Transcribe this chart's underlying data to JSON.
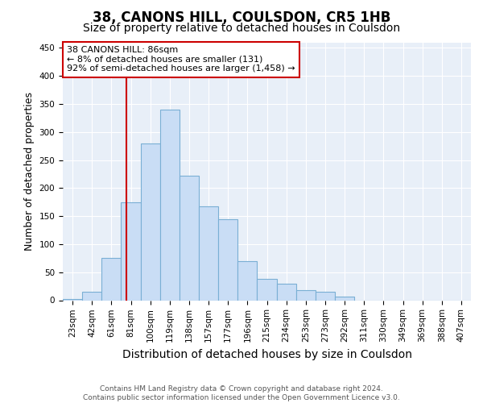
{
  "title": "38, CANONS HILL, COULSDON, CR5 1HB",
  "subtitle": "Size of property relative to detached houses in Coulsdon",
  "xlabel": "Distribution of detached houses by size in Coulsdon",
  "ylabel": "Number of detached properties",
  "footer_line1": "Contains HM Land Registry data © Crown copyright and database right 2024.",
  "footer_line2": "Contains public sector information licensed under the Open Government Licence v3.0.",
  "bin_labels": [
    "23sqm",
    "42sqm",
    "61sqm",
    "81sqm",
    "100sqm",
    "119sqm",
    "138sqm",
    "157sqm",
    "177sqm",
    "196sqm",
    "215sqm",
    "234sqm",
    "253sqm",
    "273sqm",
    "292sqm",
    "311sqm",
    "330sqm",
    "349sqm",
    "369sqm",
    "388sqm",
    "407sqm"
  ],
  "bar_values": [
    2,
    15,
    75,
    175,
    280,
    340,
    222,
    168,
    145,
    70,
    38,
    30,
    18,
    15,
    7,
    0,
    0,
    0,
    0,
    0,
    0
  ],
  "bar_color": "#c9ddf5",
  "bar_edge_color": "#7aafd4",
  "property_line_color": "#cc0000",
  "annotation_text_line1": "38 CANONS HILL: 86sqm",
  "annotation_text_line2": "← 8% of detached houses are smaller (131)",
  "annotation_text_line3": "92% of semi-detached houses are larger (1,458) →",
  "annotation_box_color": "#ffffff",
  "annotation_box_edge_color": "#cc0000",
  "ylim": [
    0,
    460
  ],
  "yticks": [
    0,
    50,
    100,
    150,
    200,
    250,
    300,
    350,
    400,
    450
  ],
  "fig_bg_color": "#ffffff",
  "plot_bg_color": "#e8eff8",
  "grid_color": "#ffffff",
  "title_fontsize": 12,
  "subtitle_fontsize": 10,
  "xlabel_fontsize": 10,
  "ylabel_fontsize": 9,
  "tick_fontsize": 7.5,
  "annotation_fontsize": 8,
  "footer_fontsize": 6.5
}
